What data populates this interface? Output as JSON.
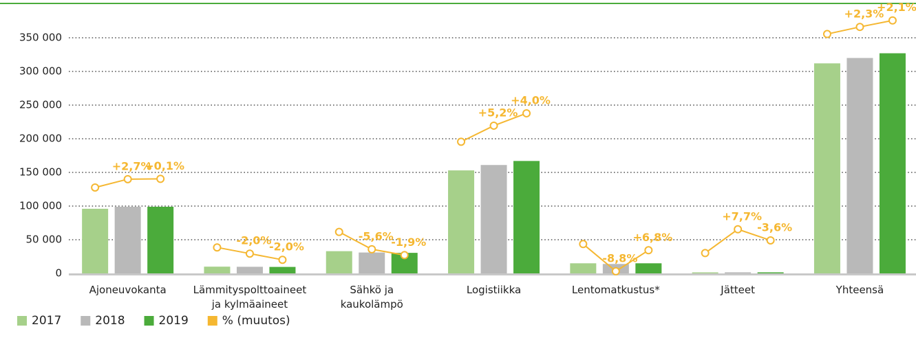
{
  "chart_data": {
    "type": "bar",
    "categories": [
      "Ajoneuvokanta",
      "Lämmityspolttoaineet\nja kylmäaineet",
      "Sähkö ja\nkaukolämpö",
      "Logistiikka",
      "Lentomatkustus*",
      "Jätteet",
      "Yhteensä"
    ],
    "series": [
      {
        "name": "2017",
        "color": "#a6d08a",
        "values": [
          96000,
          10000,
          33000,
          153000,
          15000,
          1500,
          312000
        ]
      },
      {
        "name": "2018",
        "color": "#b9b9b9",
        "values": [
          99000,
          9800,
          31000,
          161000,
          14000,
          1600,
          320000
        ]
      },
      {
        "name": "2019",
        "color": "#4bab3b",
        "values": [
          99000,
          9600,
          30500,
          167000,
          15000,
          1550,
          327000
        ]
      }
    ],
    "pct_change": {
      "name": "% (muutos)",
      "color": "#f5b731",
      "values": [
        [
          2.7,
          0.1
        ],
        [
          -2.0,
          -2.0
        ],
        [
          -5.6,
          -1.9
        ],
        [
          5.2,
          4.0
        ],
        [
          -8.8,
          6.8
        ],
        [
          7.7,
          -3.6
        ],
        [
          2.3,
          2.1
        ]
      ],
      "value_labels": [
        [
          "+2,7%",
          "+0,1%"
        ],
        [
          "-2,0%",
          "-2,0%"
        ],
        [
          "-5,6%",
          "-1,9%"
        ],
        [
          "+5,2%",
          "+4,0%"
        ],
        [
          "-8,8%",
          "+6,8%"
        ],
        [
          "+7,7%",
          "-3,6%"
        ],
        [
          "+2,3%",
          "+2,1%"
        ]
      ]
    },
    "ylim": [
      0,
      350000
    ],
    "yticks": [
      0,
      {
        "value": 50000,
        "label": "50 000"
      },
      {
        "value": 100000,
        "label": "100 000"
      },
      {
        "value": 150000,
        "label": "150 000"
      },
      {
        "value": 200000,
        "label": "200 000"
      },
      {
        "value": 250000,
        "label": "250 000"
      },
      {
        "value": 300000,
        "label": "300 000"
      },
      {
        "value": 350000,
        "label": "350 000"
      }
    ],
    "grid": true,
    "legend": "bottom-left"
  }
}
